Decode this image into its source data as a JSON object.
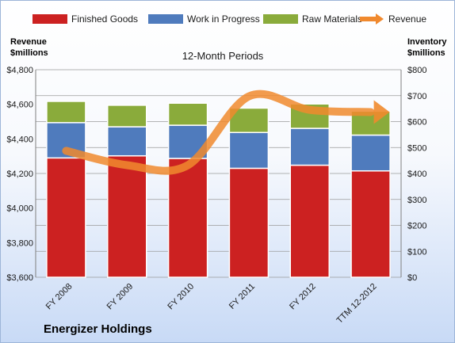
{
  "chart_data": {
    "type": "bar",
    "subtitle": "12-Month Periods",
    "company": "Energizer Holdings",
    "left_axis_title": [
      "Revenue",
      "$millions"
    ],
    "right_axis_title": [
      "Inventory",
      "$millions"
    ],
    "categories": [
      "FY 2008",
      "FY 2009",
      "FY 2010",
      "FY 2011",
      "FY 2012",
      "TTM 12-2012"
    ],
    "stacked": true,
    "series": [
      {
        "name": "Finished Goods",
        "axis": "right",
        "color": "#cc2121",
        "values": [
          460,
          468,
          458,
          420,
          432,
          410
        ]
      },
      {
        "name": "Work in Progress",
        "axis": "right",
        "color": "#4f7bbd",
        "values": [
          136,
          112,
          128,
          138,
          142,
          138
        ]
      },
      {
        "name": "Raw Materials",
        "axis": "right",
        "color": "#8aab3b",
        "values": [
          82,
          83,
          85,
          94,
          94,
          92
        ]
      },
      {
        "name": "Revenue",
        "type": "line",
        "axis": "left",
        "color": "#f0892e",
        "values": [
          4331,
          4248,
          4248,
          4646,
          4568,
          4555
        ]
      }
    ],
    "left_axis": {
      "min": 3600,
      "max": 4800,
      "step": 200,
      "ticks": [
        "$3,600",
        "$3,800",
        "$4,000",
        "$4,200",
        "$4,400",
        "$4,600",
        "$4,800"
      ]
    },
    "right_axis": {
      "min": 0,
      "max": 800,
      "step": 100,
      "ticks": [
        "$0",
        "$100",
        "$200",
        "$300",
        "$400",
        "$500",
        "$600",
        "$700",
        "$800"
      ]
    },
    "grid": "horizontal",
    "legend_position": "top"
  }
}
